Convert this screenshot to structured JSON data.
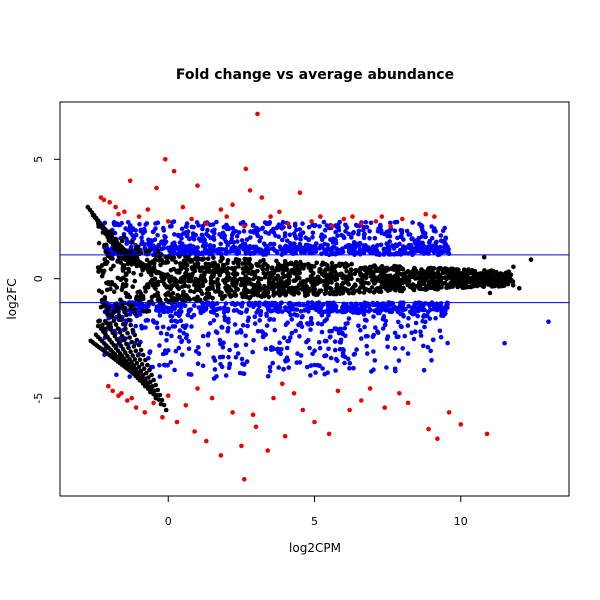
{
  "chart_data": {
    "type": "scatter",
    "title": "Fold change vs average abundance",
    "xlabel": "log2CPM",
    "ylabel": "log2FC",
    "xlim": [
      -3.7,
      13.7
    ],
    "ylim": [
      -9.1,
      7.4
    ],
    "x_ticks": [
      {
        "value": 0,
        "label": "0"
      },
      {
        "value": 5,
        "label": "5"
      },
      {
        "value": 10,
        "label": "10"
      }
    ],
    "y_ticks": [
      {
        "value": -5,
        "label": "-5"
      },
      {
        "value": 0,
        "label": "0"
      },
      {
        "value": 5,
        "label": "5"
      }
    ],
    "thresholds": [
      1,
      -1
    ],
    "threshold_color": "#0000ff",
    "grid": false,
    "legend": "none",
    "colors": {
      "not_significant": "#000000",
      "significant_low_fc": "#0000ff",
      "significant_high_fc": "#ee0000"
    },
    "series_points": {
      "red": [
        [
          3.05,
          6.9
        ],
        [
          -0.1,
          5.0
        ],
        [
          2.65,
          4.6
        ],
        [
          0.2,
          4.5
        ],
        [
          4.5,
          3.6
        ],
        [
          2.8,
          3.7
        ],
        [
          -1.3,
          4.1
        ],
        [
          -0.4,
          3.8
        ],
        [
          1.0,
          3.9
        ],
        [
          3.2,
          3.4
        ],
        [
          -2.0,
          3.2
        ],
        [
          -1.8,
          3.0
        ],
        [
          -1.5,
          2.8
        ],
        [
          0.5,
          3.0
        ],
        [
          1.8,
          2.9
        ],
        [
          2.2,
          3.1
        ],
        [
          3.8,
          2.8
        ],
        [
          5.2,
          2.6
        ],
        [
          6.0,
          2.5
        ],
        [
          7.1,
          2.4
        ],
        [
          8.0,
          2.5
        ],
        [
          8.8,
          2.7
        ],
        [
          9.1,
          2.6
        ],
        [
          -2.2,
          3.3
        ],
        [
          -1.0,
          2.6
        ],
        [
          0.0,
          2.4
        ],
        [
          1.3,
          2.3
        ],
        [
          2.6,
          2.2
        ],
        [
          4.1,
          2.3
        ],
        [
          5.6,
          2.2
        ],
        [
          6.6,
          2.3
        ],
        [
          7.6,
          2.2
        ],
        [
          -0.7,
          2.9
        ],
        [
          3.5,
          2.6
        ],
        [
          4.9,
          2.4
        ],
        [
          -2.3,
          3.4
        ],
        [
          -1.7,
          2.7
        ],
        [
          0.8,
          2.5
        ],
        [
          2.0,
          2.6
        ],
        [
          6.3,
          2.6
        ],
        [
          7.3,
          2.6
        ],
        [
          -2.05,
          -4.5
        ],
        [
          -1.9,
          -4.7
        ],
        [
          -1.7,
          -4.9
        ],
        [
          -1.4,
          -5.1
        ],
        [
          -1.1,
          -5.4
        ],
        [
          -0.8,
          -5.6
        ],
        [
          -0.5,
          -5.2
        ],
        [
          -0.2,
          -5.8
        ],
        [
          0.3,
          -6.0
        ],
        [
          0.9,
          -6.4
        ],
        [
          1.3,
          -6.8
        ],
        [
          1.8,
          -7.4
        ],
        [
          2.5,
          -7.0
        ],
        [
          2.6,
          -8.4
        ],
        [
          3.0,
          -6.2
        ],
        [
          3.4,
          -7.2
        ],
        [
          4.0,
          -6.6
        ],
        [
          4.6,
          -5.5
        ],
        [
          5.0,
          -6.0
        ],
        [
          5.5,
          -6.5
        ],
        [
          6.2,
          -5.5
        ],
        [
          6.6,
          -5.1
        ],
        [
          7.4,
          -5.4
        ],
        [
          8.2,
          -5.2
        ],
        [
          8.9,
          -6.3
        ],
        [
          9.2,
          -6.7
        ],
        [
          9.6,
          -5.6
        ],
        [
          10.0,
          -6.1
        ],
        [
          10.9,
          -6.5
        ],
        [
          1.5,
          -5.0
        ],
        [
          2.2,
          -5.6
        ],
        [
          3.6,
          -5.0
        ],
        [
          4.3,
          -4.8
        ],
        [
          0.0,
          -4.9
        ],
        [
          -1.25,
          -5.0
        ],
        [
          0.6,
          -5.3
        ],
        [
          2.9,
          -5.7
        ],
        [
          5.8,
          -4.7
        ],
        [
          7.9,
          -4.8
        ],
        [
          1.0,
          -4.6
        ],
        [
          3.9,
          -4.4
        ],
        [
          -1.6,
          -4.8
        ],
        [
          6.9,
          -4.6
        ]
      ]
    }
  }
}
